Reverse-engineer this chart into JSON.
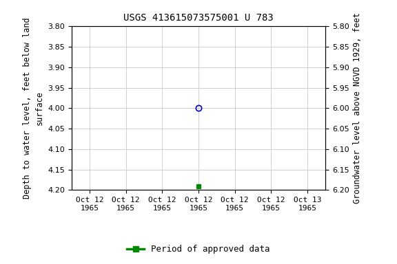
{
  "title": "USGS 413615073575001 U 783",
  "ylabel_left": "Depth to water level, feet below land\nsurface",
  "ylabel_right": "Groundwater level above NGVD 1929, feet",
  "ylim_left": [
    3.8,
    4.2
  ],
  "ylim_right": [
    5.8,
    6.2
  ],
  "xlim": [
    -0.5,
    6.5
  ],
  "xtick_positions": [
    0,
    1,
    2,
    3,
    4,
    5,
    6
  ],
  "xtick_labels": [
    "Oct 12\n1965",
    "Oct 12\n1965",
    "Oct 12\n1965",
    "Oct 12\n1965",
    "Oct 12\n1965",
    "Oct 12\n1965",
    "Oct 13\n1965"
  ],
  "data_points": [
    {
      "x": 3,
      "y_left": 4.0,
      "marker": "o",
      "color": "#0000cc",
      "fillstyle": "none",
      "markersize": 6
    },
    {
      "x": 3,
      "y_left": 4.19,
      "marker": "s",
      "color": "#008800",
      "fillstyle": "full",
      "markersize": 4
    }
  ],
  "background_color": "#ffffff",
  "grid_color": "#c8c8c8",
  "title_fontsize": 10,
  "tick_fontsize": 8,
  "ylabel_fontsize": 8.5,
  "legend_label": "Period of approved data",
  "legend_color": "#008800"
}
